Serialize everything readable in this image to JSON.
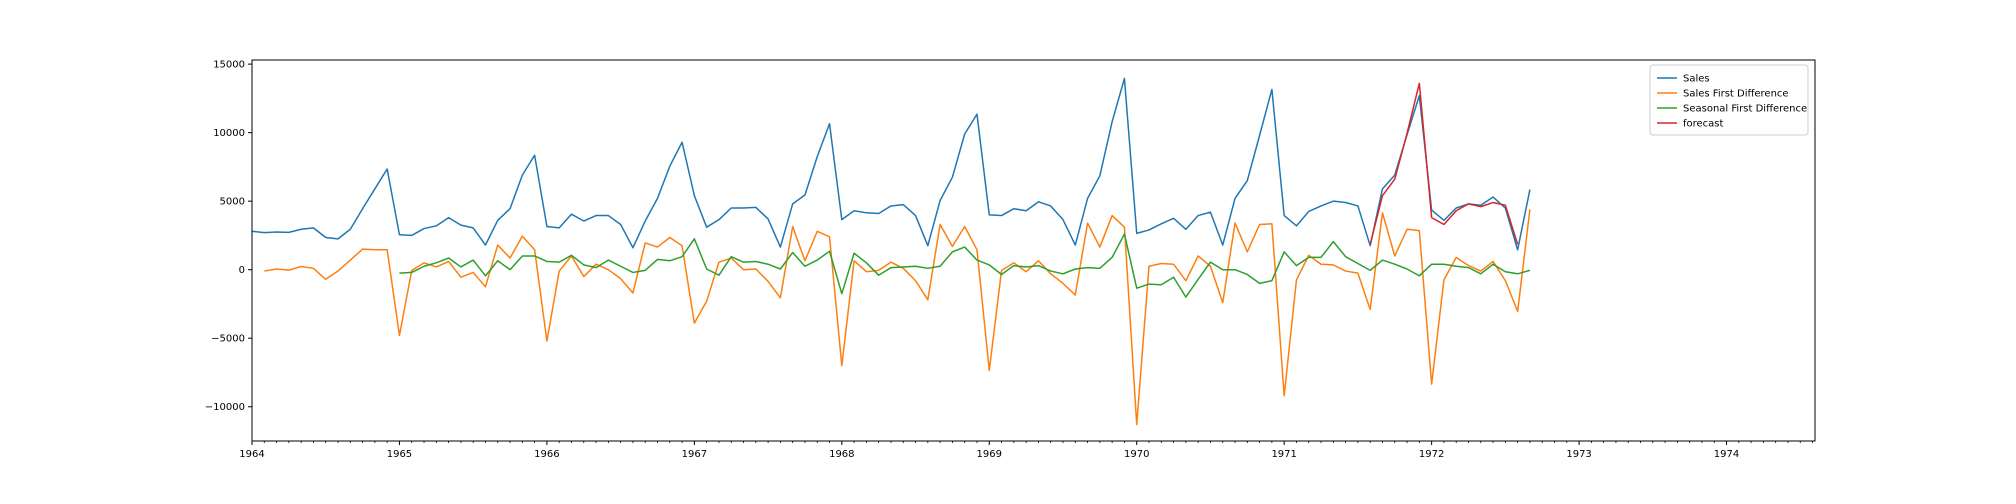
{
  "chart_data": {
    "type": "line",
    "xlim": [
      1964.0,
      1974.6
    ],
    "ylim": [
      -12500,
      15300
    ],
    "x_ticks": [
      {
        "value": 1964,
        "label": "1964"
      },
      {
        "value": 1965,
        "label": "1965"
      },
      {
        "value": 1966,
        "label": "1966"
      },
      {
        "value": 1967,
        "label": "1967"
      },
      {
        "value": 1968,
        "label": "1968"
      },
      {
        "value": 1969,
        "label": "1969"
      },
      {
        "value": 1970,
        "label": "1970"
      },
      {
        "value": 1971,
        "label": "1971"
      },
      {
        "value": 1972,
        "label": "1972"
      },
      {
        "value": 1973,
        "label": "1973"
      },
      {
        "value": 1974,
        "label": "1974"
      }
    ],
    "y_ticks": [
      {
        "value": 15000,
        "label": "15000"
      },
      {
        "value": 10000,
        "label": "10000"
      },
      {
        "value": 5000,
        "label": "5000"
      },
      {
        "value": 0,
        "label": "0"
      },
      {
        "value": -5000,
        "label": "−5000"
      },
      {
        "value": -10000,
        "label": "−10000"
      }
    ],
    "grid": false,
    "legend_position": "top-right",
    "series": [
      {
        "name": "Sales",
        "color": "#1f77b4",
        "start_year": 1964,
        "start_month": 1,
        "values": [
          2800,
          2700,
          2750,
          2720,
          2950,
          3050,
          2350,
          2250,
          2950,
          4450,
          5900,
          7350,
          2550,
          2500,
          3000,
          3200,
          3800,
          3250,
          3050,
          1800,
          3600,
          4450,
          6900,
          8350,
          3150,
          3050,
          4050,
          3550,
          3950,
          3950,
          3300,
          1600,
          3550,
          5200,
          7550,
          9300,
          5400,
          3100,
          3650,
          4500,
          4500,
          4550,
          3700,
          1650,
          4800,
          5450,
          8250,
          10650,
          3650,
          4300,
          4150,
          4100,
          4650,
          4750,
          3950,
          1750,
          5050,
          6750,
          9900,
          11350,
          4000,
          3950,
          4450,
          4300,
          4950,
          4650,
          3650,
          1800,
          5200,
          6850,
          10800,
          13950,
          2650,
          2900,
          3350,
          3750,
          2950,
          3950,
          4200,
          1800,
          5200,
          6500,
          9800,
          13150,
          3950,
          3200,
          4250,
          4650,
          5000,
          4900,
          4650,
          1750,
          5900,
          6900,
          9850,
          12700,
          4350,
          3600,
          4500,
          4800,
          4700,
          5300,
          4500,
          1450,
          5850
        ]
      },
      {
        "name": "Sales First Difference",
        "color": "#ff7f0e",
        "start_year": 1964,
        "start_month": 2,
        "values": [
          -100,
          50,
          -30,
          230,
          100,
          -700,
          -100,
          700,
          1500,
          1450,
          1450,
          -4800,
          -50,
          500,
          200,
          600,
          -550,
          -200,
          -1250,
          1800,
          850,
          2450,
          1450,
          -5200,
          -100,
          1000,
          -500,
          400,
          0,
          -650,
          -1700,
          1950,
          1650,
          2350,
          1750,
          -3900,
          -2300,
          550,
          850,
          0,
          50,
          -850,
          -2050,
          3150,
          650,
          2800,
          2400,
          -7000,
          650,
          -150,
          -50,
          550,
          100,
          -800,
          -2200,
          3300,
          1700,
          3150,
          1450,
          -7350,
          -50,
          500,
          -150,
          650,
          -300,
          -1000,
          -1850,
          3400,
          1650,
          3950,
          3100,
          -11300,
          250,
          450,
          400,
          -800,
          1000,
          250,
          -2400,
          3400,
          1300,
          3300,
          3350,
          -9200,
          -750,
          1050,
          400,
          350,
          -100,
          -250,
          -2900,
          4150,
          1000,
          2950,
          2850,
          -8350,
          -750,
          900,
          300,
          -100,
          600,
          -800,
          -3050,
          4400
        ]
      },
      {
        "name": "Seasonal First Difference",
        "color": "#2ca02c",
        "start_year": 1965,
        "start_month": 1,
        "values": [
          -250,
          -200,
          250,
          500,
          850,
          200,
          700,
          -450,
          650,
          0,
          1000,
          1000,
          600,
          550,
          1050,
          350,
          150,
          700,
          250,
          -200,
          -50,
          750,
          650,
          950,
          2250,
          50,
          -400,
          950,
          550,
          600,
          400,
          50,
          1250,
          250,
          700,
          1350,
          -1750,
          1200,
          500,
          -400,
          150,
          200,
          250,
          100,
          250,
          1300,
          1650,
          700,
          350,
          -350,
          300,
          200,
          300,
          -100,
          -300,
          50,
          150,
          100,
          900,
          2600,
          -1350,
          -1050,
          -1100,
          -550,
          -2000,
          -700,
          550,
          0,
          0,
          -350,
          -1000,
          -800,
          1300,
          300,
          900,
          900,
          2050,
          950,
          450,
          -50,
          700,
          400,
          50,
          -450,
          400,
          400,
          250,
          150,
          -300,
          400,
          -150,
          -300,
          -50
        ]
      },
      {
        "name": "forecast",
        "color": "#d62728",
        "start_year": 1971,
        "start_month": 8,
        "values": [
          1850,
          5400,
          6600,
          9950,
          13600,
          3800,
          3300,
          4300,
          4800,
          4600,
          4900,
          4700,
          1850
        ]
      }
    ]
  }
}
